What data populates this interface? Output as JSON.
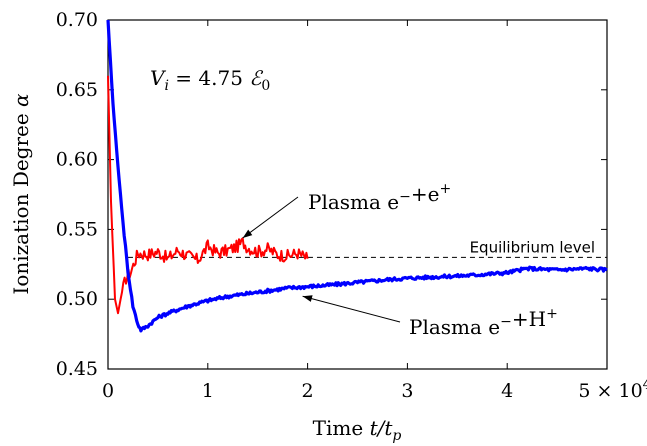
{
  "chart_data": {
    "type": "line",
    "xlabel": "Time t/t_p",
    "ylabel": "Ionization Degree α",
    "x_ticks": [
      "0",
      "1",
      "2",
      "3",
      "4",
      "5 × 10^4"
    ],
    "y_ticks": [
      "0.45",
      "0.50",
      "0.55",
      "0.60",
      "0.65",
      "0.70"
    ],
    "xlim": [
      0,
      50000
    ],
    "ylim": [
      0.45,
      0.7
    ],
    "grid": false,
    "formula": "V_i = 4.75 ℰ_0",
    "equilibrium": {
      "label": "Equilibrium level",
      "y": 0.53
    },
    "annotations": [
      {
        "text": "Plasma e⁻+e⁺",
        "points_to_x": 13500,
        "points_to_y": 0.541
      },
      {
        "text": "Plasma e⁻+H⁺",
        "points_to_x": 19500,
        "points_to_y": 0.505
      }
    ],
    "series": [
      {
        "color": "#ff0000",
        "x": [
          0,
          300,
          700,
          1000,
          1400,
          1800,
          2300,
          3000,
          4000,
          5000,
          6000,
          7000,
          8000,
          9000,
          10000,
          11000,
          12000,
          13000,
          13500,
          14000,
          15000,
          16000,
          17000,
          18000,
          19000,
          20000
        ],
        "values": [
          0.66,
          0.57,
          0.5,
          0.49,
          0.505,
          0.515,
          0.52,
          0.533,
          0.532,
          0.534,
          0.529,
          0.535,
          0.531,
          0.528,
          0.538,
          0.533,
          0.535,
          0.538,
          0.541,
          0.537,
          0.534,
          0.536,
          0.532,
          0.531,
          0.533,
          0.529
        ]
      },
      {
        "color": "#0000ff",
        "x": [
          0,
          500,
          1000,
          1500,
          2000,
          2500,
          3000,
          3300,
          4000,
          5000,
          6000,
          8000,
          10000,
          12000,
          14000,
          16000,
          18000,
          20000,
          22000,
          25000,
          28000,
          30000,
          33000,
          36000,
          40000,
          42000,
          45000,
          48000,
          50000
        ],
        "values": [
          0.7,
          0.64,
          0.595,
          0.555,
          0.52,
          0.495,
          0.482,
          0.478,
          0.481,
          0.487,
          0.49,
          0.495,
          0.499,
          0.502,
          0.504,
          0.506,
          0.508,
          0.509,
          0.51,
          0.512,
          0.514,
          0.515,
          0.516,
          0.517,
          0.519,
          0.522,
          0.521,
          0.522,
          0.521
        ]
      }
    ]
  }
}
